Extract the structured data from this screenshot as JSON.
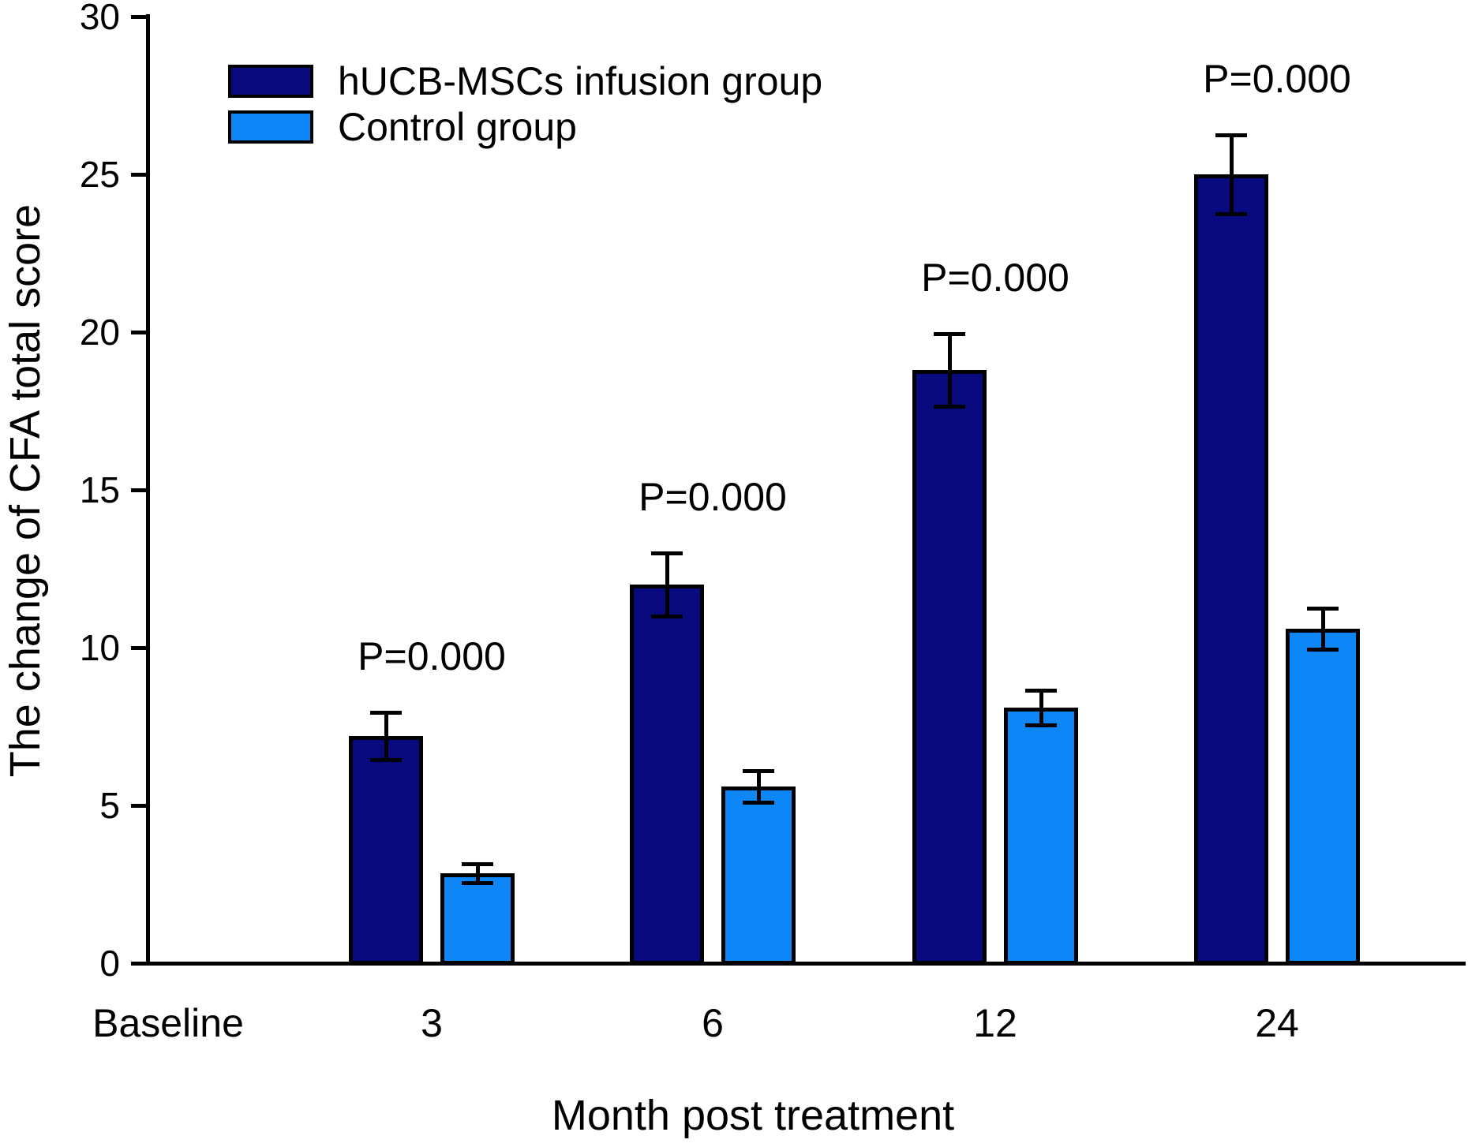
{
  "figure": {
    "background": "#ffffff",
    "text_color": "#000000"
  },
  "chart_data": {
    "type": "bar",
    "title": "",
    "xlabel": "Month post treatment",
    "ylabel": "The change of CFA total score",
    "categories": [
      "Baseline",
      "3",
      "6",
      "12",
      "24"
    ],
    "series": [
      {
        "name": "hUCB-MSCs infusion group",
        "color": "#080a7d",
        "values": [
          null,
          7.2,
          12.0,
          18.8,
          25.0
        ],
        "errors": [
          null,
          0.75,
          1.0,
          1.15,
          1.25
        ]
      },
      {
        "name": "Control group",
        "color": "#0d86f8",
        "values": [
          null,
          2.85,
          5.6,
          8.1,
          10.6
        ],
        "errors": [
          null,
          0.3,
          0.5,
          0.55,
          0.65
        ]
      }
    ],
    "annotations": [
      {
        "category": "3",
        "text": "P=0.000"
      },
      {
        "category": "6",
        "text": "P=0.000"
      },
      {
        "category": "12",
        "text": "P=0.000"
      },
      {
        "category": "24",
        "text": "P=0.000"
      }
    ],
    "ylim": [
      0,
      30
    ],
    "yticks": [
      0,
      5,
      10,
      15,
      20,
      25,
      30
    ],
    "grid": false,
    "legend_position": "upper-left-inside",
    "bar_edge_color": "#000000",
    "error_bar_color": "#000000",
    "axis_color": "#000000"
  }
}
